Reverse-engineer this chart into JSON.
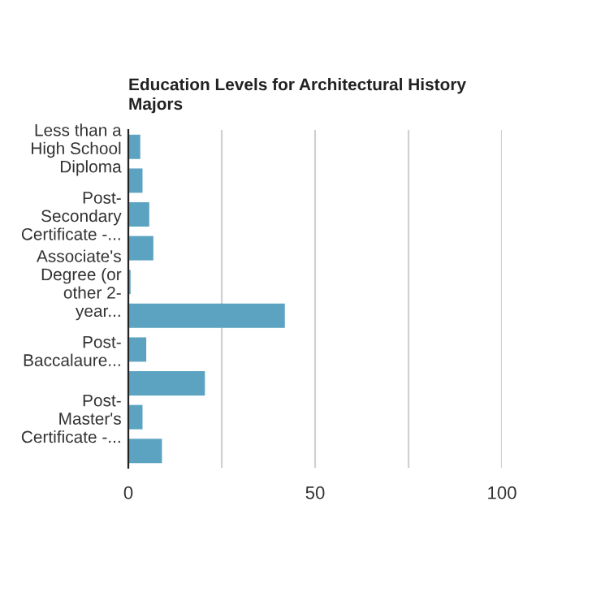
{
  "chart_data": {
    "type": "bar",
    "orientation": "horizontal",
    "title": "Education Levels for Architectural History Majors",
    "categories": [
      "Less than a High School Diploma",
      null,
      "Post-Secondary Certificate -...",
      null,
      "Associate's Degree (or other 2-year...",
      null,
      "Post-Baccalaure...",
      null,
      "Post-Master's Certificate -...",
      null
    ],
    "values": [
      3.2,
      3.8,
      5.6,
      6.7,
      0.6,
      41.9,
      4.8,
      20.5,
      3.8,
      9.0
    ],
    "color": "#5ba3c1",
    "xlim": [
      0,
      100
    ],
    "xticks": [
      0,
      {
        "value": 25,
        "label": null
      },
      50,
      {
        "value": 75,
        "label": null
      },
      100
    ],
    "grid": "x"
  }
}
